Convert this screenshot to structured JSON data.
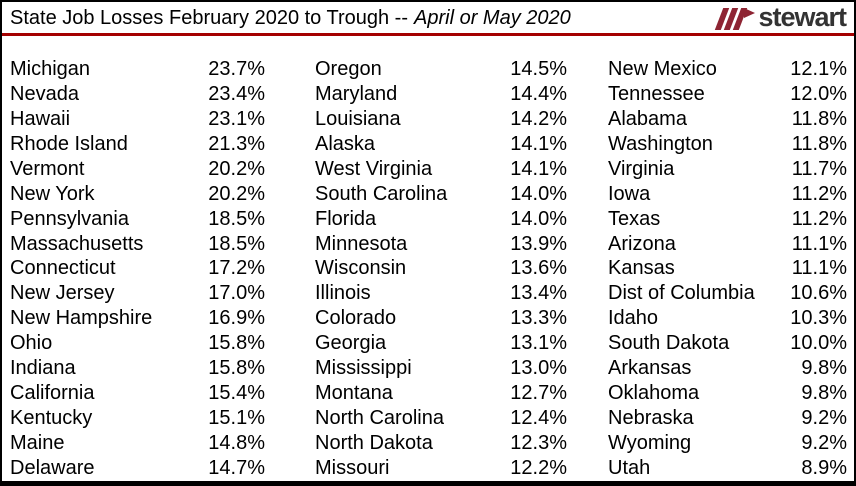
{
  "header": {
    "title_regular": "State Job Losses February 2020 to Trough --",
    "title_italic": "April or May 2020",
    "logo_text": "stewart"
  },
  "colors": {
    "rule_red": "#A40000",
    "logo_red": "#8E2433",
    "logo_text_gray": "#333333",
    "border_black": "#000000",
    "text_black": "#000000",
    "background": "#FFFFFF"
  },
  "chart_data": {
    "type": "table",
    "title": "State Job Losses February 2020 to Trough -- April or May 2020",
    "value_unit": "%",
    "value_precision": 1,
    "layout": {
      "columns": 3,
      "rows_per_column": 17,
      "legend": "none",
      "grid": "off"
    },
    "entries": [
      {
        "state": "Michigan",
        "pct": 23.7
      },
      {
        "state": "Nevada",
        "pct": 23.4
      },
      {
        "state": "Hawaii",
        "pct": 23.1
      },
      {
        "state": "Rhode Island",
        "pct": 21.3
      },
      {
        "state": "Vermont",
        "pct": 20.2
      },
      {
        "state": "New York",
        "pct": 20.2
      },
      {
        "state": "Pennsylvania",
        "pct": 18.5
      },
      {
        "state": "Massachusetts",
        "pct": 18.5
      },
      {
        "state": "Connecticut",
        "pct": 17.2
      },
      {
        "state": "New Jersey",
        "pct": 17.0
      },
      {
        "state": "New Hampshire",
        "pct": 16.9
      },
      {
        "state": "Ohio",
        "pct": 15.8
      },
      {
        "state": "Indiana",
        "pct": 15.8
      },
      {
        "state": "California",
        "pct": 15.4
      },
      {
        "state": "Kentucky",
        "pct": 15.1
      },
      {
        "state": "Maine",
        "pct": 14.8
      },
      {
        "state": "Delaware",
        "pct": 14.7
      },
      {
        "state": "Oregon",
        "pct": 14.5
      },
      {
        "state": "Maryland",
        "pct": 14.4
      },
      {
        "state": "Louisiana",
        "pct": 14.2
      },
      {
        "state": "Alaska",
        "pct": 14.1
      },
      {
        "state": "West Virginia",
        "pct": 14.1
      },
      {
        "state": "South Carolina",
        "pct": 14.0
      },
      {
        "state": "Florida",
        "pct": 14.0
      },
      {
        "state": "Minnesota",
        "pct": 13.9
      },
      {
        "state": "Wisconsin",
        "pct": 13.6
      },
      {
        "state": "Illinois",
        "pct": 13.4
      },
      {
        "state": "Colorado",
        "pct": 13.3
      },
      {
        "state": "Georgia",
        "pct": 13.1
      },
      {
        "state": "Mississippi",
        "pct": 13.0
      },
      {
        "state": "Montana",
        "pct": 12.7
      },
      {
        "state": "North Carolina",
        "pct": 12.4
      },
      {
        "state": "North Dakota",
        "pct": 12.3
      },
      {
        "state": "Missouri",
        "pct": 12.2
      },
      {
        "state": "New Mexico",
        "pct": 12.1
      },
      {
        "state": "Tennessee",
        "pct": 12.0
      },
      {
        "state": "Alabama",
        "pct": 11.8
      },
      {
        "state": "Washington",
        "pct": 11.8
      },
      {
        "state": "Virginia",
        "pct": 11.7
      },
      {
        "state": "Iowa",
        "pct": 11.2
      },
      {
        "state": "Texas",
        "pct": 11.2
      },
      {
        "state": "Arizona",
        "pct": 11.1
      },
      {
        "state": "Kansas",
        "pct": 11.1
      },
      {
        "state": "Dist of Columbia",
        "pct": 10.6
      },
      {
        "state": "Idaho",
        "pct": 10.3
      },
      {
        "state": "South Dakota",
        "pct": 10.0
      },
      {
        "state": "Arkansas",
        "pct": 9.8
      },
      {
        "state": "Oklahoma",
        "pct": 9.8
      },
      {
        "state": "Nebraska",
        "pct": 9.2
      },
      {
        "state": "Wyoming",
        "pct": 9.2
      },
      {
        "state": "Utah",
        "pct": 8.9
      }
    ]
  }
}
